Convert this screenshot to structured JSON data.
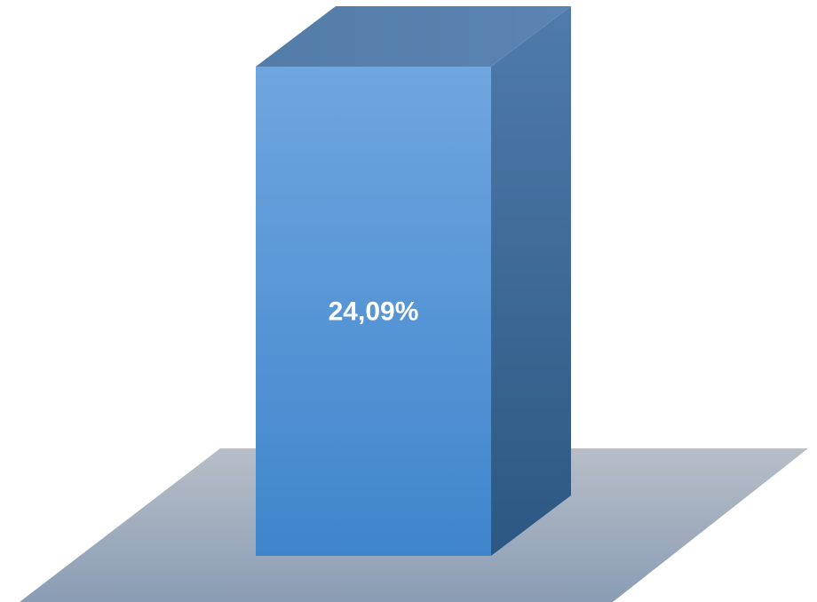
{
  "chart_data": {
    "type": "bar",
    "style": "3d-column",
    "categories": [
      ""
    ],
    "values": [
      24.09
    ],
    "data_labels": [
      "24,09%"
    ],
    "title": "",
    "xlabel": "",
    "ylabel": "",
    "grid": false,
    "legend": "none",
    "colors": {
      "bar_front_top": "#6fa6df",
      "bar_front_bottom": "#3f85cc",
      "bar_side_top": "#4f7bab",
      "bar_side_bottom": "#2c5782",
      "bar_top_left": "#537ca8",
      "bar_top_right": "#5b84b3",
      "floor_top": "#b8bec7",
      "floor_bottom": "#8a9db5"
    }
  }
}
